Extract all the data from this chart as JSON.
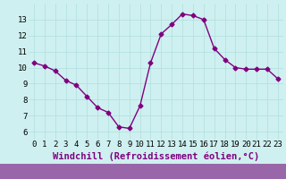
{
  "x": [
    0,
    1,
    2,
    3,
    4,
    5,
    6,
    7,
    8,
    9,
    10,
    11,
    12,
    13,
    14,
    15,
    16,
    17,
    18,
    19,
    20,
    21,
    22,
    23
  ],
  "y": [
    10.3,
    10.1,
    9.8,
    9.2,
    8.9,
    8.2,
    7.5,
    7.2,
    6.3,
    6.2,
    7.6,
    10.3,
    12.1,
    12.7,
    13.35,
    13.25,
    13.0,
    11.2,
    10.5,
    10.0,
    9.9,
    9.9,
    9.9,
    9.3
  ],
  "line_color": "#800080",
  "marker": "D",
  "marker_size": 2.5,
  "bg_color": "#cff0f0",
  "grid_color": "#b0dede",
  "xlabel": "Windchill (Refroidissement éolien,°C)",
  "xlabel_fontsize": 7.5,
  "xlim": [
    -0.5,
    23.5
  ],
  "ylim": [
    5.5,
    14.0
  ],
  "yticks": [
    6,
    7,
    8,
    9,
    10,
    11,
    12,
    13
  ],
  "xticks": [
    0,
    1,
    2,
    3,
    4,
    5,
    6,
    7,
    8,
    9,
    10,
    11,
    12,
    13,
    14,
    15,
    16,
    17,
    18,
    19,
    20,
    21,
    22,
    23
  ],
  "tick_fontsize": 6.5,
  "line_width": 1.0
}
